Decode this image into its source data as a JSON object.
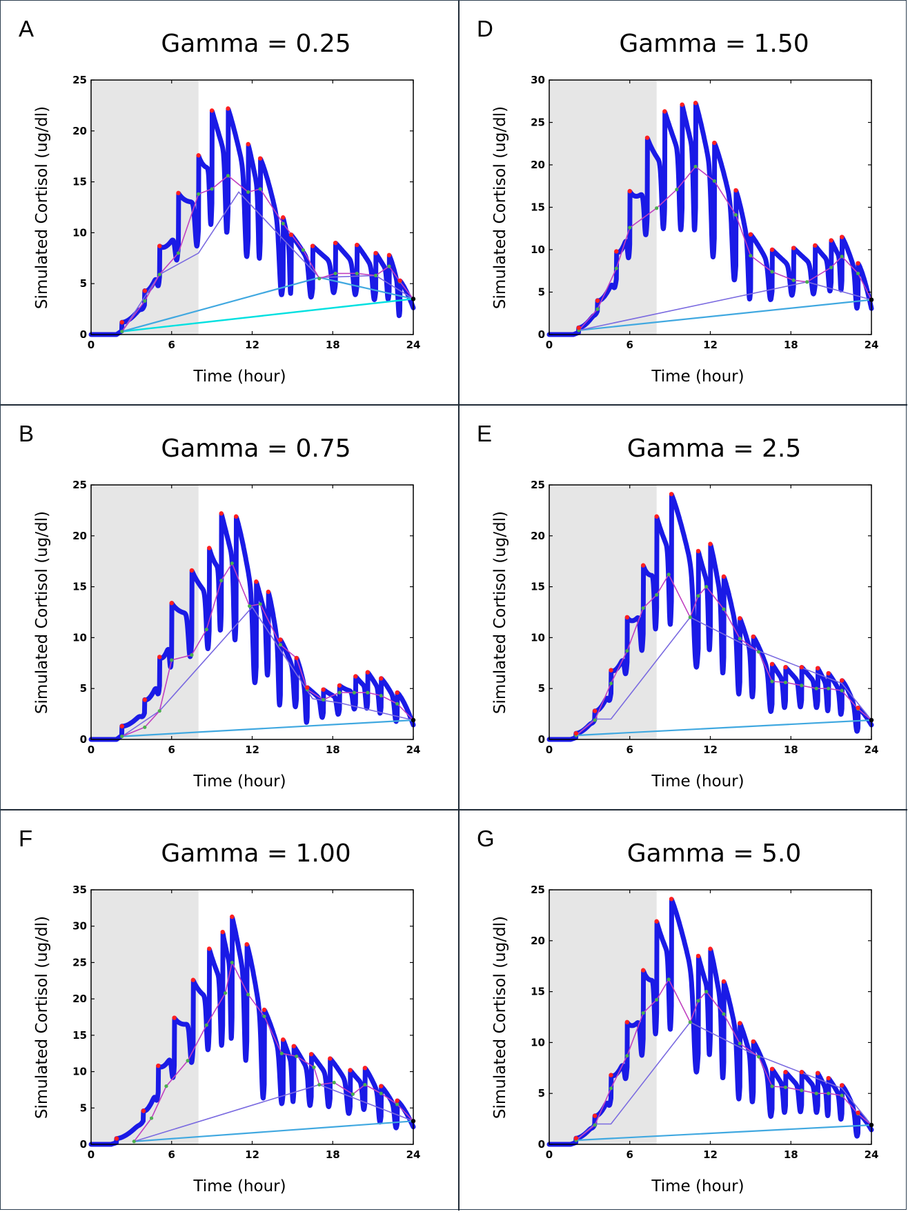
{
  "xlabel": "Time (hour)",
  "ylabel": "Simulated Cortisol (ug/dl)",
  "colors": {
    "trace": "#1a1ae6",
    "peak": "#ff2020",
    "trough": "#4caf50",
    "level1": "#c040c0",
    "level2": "#7a6ae0",
    "level3": "#40a8e0",
    "level4": "#00e0e0",
    "shade": "#e6e6e6"
  },
  "chart_data": [
    {
      "panel": "A",
      "title": "Gamma = 0.25",
      "type": "line",
      "xlim": [
        0,
        24
      ],
      "ylim": [
        0,
        25
      ],
      "xticks": [
        0,
        6,
        12,
        18,
        24
      ],
      "yticks": [
        0,
        5,
        10,
        15,
        20,
        25
      ],
      "shaded_interval": [
        0,
        8
      ],
      "pulses": [
        {
          "t": 2.3,
          "h": 1.2
        },
        {
          "t": 4.0,
          "h": 4.3
        },
        {
          "t": 5.1,
          "h": 8.7
        },
        {
          "t": 6.5,
          "h": 13.9
        },
        {
          "t": 8.0,
          "h": 17.6
        },
        {
          "t": 9.0,
          "h": 22.0
        },
        {
          "t": 10.2,
          "h": 22.2
        },
        {
          "t": 11.7,
          "h": 18.7
        },
        {
          "t": 12.6,
          "h": 17.3
        },
        {
          "t": 14.3,
          "h": 11.5
        },
        {
          "t": 14.9,
          "h": 9.8
        },
        {
          "t": 16.5,
          "h": 8.7
        },
        {
          "t": 18.2,
          "h": 9.0
        },
        {
          "t": 19.8,
          "h": 8.8
        },
        {
          "t": 21.2,
          "h": 8.0
        },
        {
          "t": 22.2,
          "h": 7.8
        },
        {
          "t": 23.0,
          "h": 5.3
        }
      ],
      "end": [
        24,
        3.5
      ],
      "level1": [
        [
          2.3,
          0.3
        ],
        [
          4.0,
          3.3
        ],
        [
          5.1,
          5.9
        ],
        [
          6.5,
          8.0
        ],
        [
          8.0,
          13.8
        ],
        [
          9.0,
          14.3
        ],
        [
          10.2,
          15.6
        ],
        [
          11.7,
          14.0
        ],
        [
          12.6,
          14.3
        ],
        [
          14.3,
          10.9
        ],
        [
          15.8,
          8.3
        ],
        [
          17.0,
          5.5
        ],
        [
          18.2,
          6.0
        ],
        [
          19.8,
          6.0
        ],
        [
          21.2,
          5.8
        ],
        [
          22.2,
          6.7
        ],
        [
          23.0,
          5.2
        ],
        [
          24,
          3.5
        ]
      ],
      "level2": [
        [
          2.3,
          0.3
        ],
        [
          5.1,
          5.9
        ],
        [
          8.0,
          8.0
        ],
        [
          11.0,
          14.0
        ],
        [
          17.0,
          5.6
        ],
        [
          21.2,
          5.8
        ],
        [
          24,
          3.5
        ]
      ],
      "level3": [
        [
          2.3,
          0.3
        ],
        [
          17.0,
          5.6
        ],
        [
          24,
          3.5
        ]
      ],
      "level4": [
        [
          2.3,
          0.3
        ],
        [
          24,
          3.5
        ]
      ]
    },
    {
      "panel": "D",
      "title": "Gamma = 1.50",
      "type": "line",
      "xlim": [
        0,
        24
      ],
      "ylim": [
        0,
        30
      ],
      "xticks": [
        0,
        6,
        12,
        18,
        24
      ],
      "yticks": [
        0,
        5,
        10,
        15,
        20,
        25,
        30
      ],
      "shaded_interval": [
        0,
        8
      ],
      "pulses": [
        {
          "t": 2.2,
          "h": 0.8
        },
        {
          "t": 3.6,
          "h": 4.0
        },
        {
          "t": 5.0,
          "h": 9.8
        },
        {
          "t": 6.0,
          "h": 16.9
        },
        {
          "t": 7.3,
          "h": 23.2
        },
        {
          "t": 8.6,
          "h": 26.3
        },
        {
          "t": 9.9,
          "h": 27.1
        },
        {
          "t": 10.9,
          "h": 27.3
        },
        {
          "t": 12.3,
          "h": 22.6
        },
        {
          "t": 13.9,
          "h": 17.0
        },
        {
          "t": 15.0,
          "h": 11.8
        },
        {
          "t": 16.6,
          "h": 10.0
        },
        {
          "t": 18.2,
          "h": 10.2
        },
        {
          "t": 19.8,
          "h": 10.5
        },
        {
          "t": 21.0,
          "h": 11.1
        },
        {
          "t": 21.8,
          "h": 11.5
        },
        {
          "t": 23.0,
          "h": 8.4
        }
      ],
      "end": [
        24,
        4.1
      ],
      "level1": [
        [
          2.2,
          0.5
        ],
        [
          3.6,
          3.0
        ],
        [
          5.0,
          7.8
        ],
        [
          6.0,
          12.6
        ],
        [
          8.0,
          14.9
        ],
        [
          9.5,
          17.1
        ],
        [
          10.9,
          19.8
        ],
        [
          12.3,
          18.1
        ],
        [
          13.9,
          14.1
        ],
        [
          15.0,
          9.3
        ],
        [
          16.6,
          7.4
        ],
        [
          18.2,
          6.4
        ],
        [
          19.2,
          6.2
        ],
        [
          21.0,
          7.9
        ],
        [
          21.8,
          9.2
        ],
        [
          23.0,
          7.2
        ],
        [
          24,
          4.1
        ]
      ],
      "level2": [
        [
          2.2,
          0.5
        ],
        [
          19.2,
          6.2
        ],
        [
          24,
          4.1
        ]
      ],
      "level3": [
        [
          2.2,
          0.5
        ],
        [
          24,
          4.1
        ]
      ]
    },
    {
      "panel": "B",
      "title": "Gamma = 0.75",
      "type": "line",
      "xlim": [
        0,
        24
      ],
      "ylim": [
        0,
        25
      ],
      "xticks": [
        0,
        6,
        12,
        18,
        24
      ],
      "yticks": [
        0,
        5,
        10,
        15,
        20,
        25
      ],
      "shaded_interval": [
        0,
        8
      ],
      "pulses": [
        {
          "t": 2.3,
          "h": 1.3
        },
        {
          "t": 4.0,
          "h": 3.9
        },
        {
          "t": 5.1,
          "h": 8.1
        },
        {
          "t": 6.0,
          "h": 13.4
        },
        {
          "t": 7.5,
          "h": 16.6
        },
        {
          "t": 8.8,
          "h": 18.8
        },
        {
          "t": 9.7,
          "h": 22.2
        },
        {
          "t": 10.8,
          "h": 21.9
        },
        {
          "t": 12.3,
          "h": 15.5
        },
        {
          "t": 13.2,
          "h": 14.5
        },
        {
          "t": 14.1,
          "h": 9.8
        },
        {
          "t": 15.3,
          "h": 8.0
        },
        {
          "t": 16.1,
          "h": 5.1
        },
        {
          "t": 17.3,
          "h": 4.9
        },
        {
          "t": 18.5,
          "h": 5.3
        },
        {
          "t": 19.7,
          "h": 6.2
        },
        {
          "t": 20.6,
          "h": 6.6
        },
        {
          "t": 21.6,
          "h": 6.0
        },
        {
          "t": 22.8,
          "h": 4.6
        }
      ],
      "end": [
        24,
        1.9
      ],
      "level1": [
        [
          2.3,
          0.3
        ],
        [
          4.0,
          1.2
        ],
        [
          5.1,
          2.8
        ],
        [
          6.0,
          7.8
        ],
        [
          7.5,
          8.3
        ],
        [
          8.6,
          10.8
        ],
        [
          9.7,
          15.6
        ],
        [
          10.5,
          17.3
        ],
        [
          11.8,
          13.1
        ],
        [
          12.6,
          13.3
        ],
        [
          14.1,
          9.3
        ],
        [
          15.3,
          8.0
        ],
        [
          16.1,
          4.9
        ],
        [
          17.3,
          3.9
        ],
        [
          18.5,
          4.6
        ],
        [
          19.6,
          4.6
        ],
        [
          20.6,
          4.6
        ],
        [
          21.6,
          4.3
        ],
        [
          22.8,
          3.5
        ],
        [
          24,
          1.9
        ]
      ],
      "level2": [
        [
          2.3,
          0.3
        ],
        [
          5.1,
          2.8
        ],
        [
          12.0,
          13.0
        ],
        [
          16.5,
          4.0
        ],
        [
          18.5,
          3.6
        ],
        [
          24,
          1.9
        ]
      ],
      "level3": [
        [
          2.3,
          0.3
        ],
        [
          24,
          1.9
        ]
      ]
    },
    {
      "panel": "E",
      "title": "Gamma = 2.5",
      "type": "line",
      "xlim": [
        0,
        24
      ],
      "ylim": [
        0,
        25
      ],
      "xticks": [
        0,
        6,
        12,
        18,
        24
      ],
      "yticks": [
        0,
        5,
        10,
        15,
        20,
        25
      ],
      "shaded_interval": [
        0,
        8
      ],
      "pulses": [
        {
          "t": 2.0,
          "h": 0.6
        },
        {
          "t": 3.4,
          "h": 2.8
        },
        {
          "t": 4.6,
          "h": 6.8
        },
        {
          "t": 5.8,
          "h": 12.0
        },
        {
          "t": 7.0,
          "h": 17.1
        },
        {
          "t": 8.0,
          "h": 21.9
        },
        {
          "t": 9.1,
          "h": 24.1
        },
        {
          "t": 11.1,
          "h": 18.5
        },
        {
          "t": 12.0,
          "h": 19.2
        },
        {
          "t": 13.0,
          "h": 16.0
        },
        {
          "t": 14.2,
          "h": 11.9
        },
        {
          "t": 15.2,
          "h": 10.1
        },
        {
          "t": 16.6,
          "h": 7.4
        },
        {
          "t": 17.6,
          "h": 7.1
        },
        {
          "t": 18.8,
          "h": 7.1
        },
        {
          "t": 20.0,
          "h": 7.0
        },
        {
          "t": 20.8,
          "h": 6.5
        },
        {
          "t": 21.8,
          "h": 5.8
        },
        {
          "t": 23.0,
          "h": 3.1
        }
      ],
      "end": [
        24,
        1.9
      ],
      "level1": [
        [
          2.0,
          0.4
        ],
        [
          3.4,
          1.9
        ],
        [
          4.6,
          5.5
        ],
        [
          5.8,
          8.7
        ],
        [
          7.0,
          12.9
        ],
        [
          8.0,
          14.2
        ],
        [
          8.9,
          16.2
        ],
        [
          10.5,
          12.0
        ],
        [
          11.1,
          14.1
        ],
        [
          11.7,
          15.0
        ],
        [
          13.0,
          12.8
        ],
        [
          14.2,
          9.9
        ],
        [
          15.6,
          8.6
        ],
        [
          16.6,
          5.7
        ],
        [
          17.6,
          5.6
        ],
        [
          18.8,
          5.3
        ],
        [
          19.9,
          5.0
        ],
        [
          20.8,
          5.0
        ],
        [
          21.8,
          4.8
        ],
        [
          23.0,
          3.0
        ],
        [
          24,
          1.9
        ]
      ],
      "level2": [
        [
          2.0,
          0.4
        ],
        [
          3.4,
          2.0
        ],
        [
          4.6,
          2.0
        ],
        [
          10.5,
          12.0
        ],
        [
          15.0,
          9.0
        ],
        [
          21.8,
          5.5
        ],
        [
          24,
          1.9
        ]
      ],
      "level3": [
        [
          2.0,
          0.4
        ],
        [
          24,
          1.9
        ]
      ]
    },
    {
      "panel": "F",
      "title": "Gamma = 1.00",
      "type": "line",
      "xlim": [
        0,
        24
      ],
      "ylim": [
        0,
        35
      ],
      "xticks": [
        0,
        6,
        12,
        18,
        24
      ],
      "yticks": [
        0,
        5,
        10,
        15,
        20,
        25,
        30,
        35
      ],
      "shaded_interval": [
        0,
        8
      ],
      "pulses": [
        {
          "t": 1.9,
          "h": 0.8
        },
        {
          "t": 3.9,
          "h": 4.6
        },
        {
          "t": 5.0,
          "h": 10.8
        },
        {
          "t": 6.2,
          "h": 17.4
        },
        {
          "t": 7.6,
          "h": 22.6
        },
        {
          "t": 8.8,
          "h": 26.9
        },
        {
          "t": 9.8,
          "h": 29.2
        },
        {
          "t": 10.5,
          "h": 31.3
        },
        {
          "t": 11.6,
          "h": 27.5
        },
        {
          "t": 12.9,
          "h": 18.5
        },
        {
          "t": 14.3,
          "h": 14.4
        },
        {
          "t": 15.1,
          "h": 13.5
        },
        {
          "t": 16.4,
          "h": 12.4
        },
        {
          "t": 17.8,
          "h": 11.8
        },
        {
          "t": 19.3,
          "h": 10.2
        },
        {
          "t": 20.4,
          "h": 10.5
        },
        {
          "t": 21.6,
          "h": 8.0
        },
        {
          "t": 22.8,
          "h": 6.0
        }
      ],
      "end": [
        24,
        3.2
      ],
      "level1": [
        [
          3.2,
          0.4
        ],
        [
          4.5,
          3.6
        ],
        [
          5.6,
          8.0
        ],
        [
          7.2,
          11.5
        ],
        [
          8.6,
          16.4
        ],
        [
          10.0,
          20.8
        ],
        [
          10.5,
          25.0
        ],
        [
          11.7,
          20.6
        ],
        [
          12.9,
          17.6
        ],
        [
          14.2,
          12.5
        ],
        [
          15.3,
          12.1
        ],
        [
          16.6,
          10.6
        ],
        [
          17.0,
          8.2
        ],
        [
          18.1,
          8.5
        ],
        [
          19.5,
          6.9
        ],
        [
          20.4,
          8.2
        ],
        [
          21.6,
          7.0
        ],
        [
          22.8,
          5.5
        ],
        [
          24,
          3.2
        ]
      ],
      "level2": [
        [
          3.2,
          0.4
        ],
        [
          17.0,
          8.2
        ],
        [
          24,
          3.2
        ]
      ],
      "level3": [
        [
          3.2,
          0.4
        ],
        [
          24,
          3.2
        ]
      ]
    },
    {
      "panel": "G",
      "title": "Gamma = 5.0",
      "type": "line",
      "xlim": [
        0,
        24
      ],
      "ylim": [
        0,
        25
      ],
      "xticks": [
        0,
        6,
        12,
        18,
        24
      ],
      "yticks": [
        0,
        5,
        10,
        15,
        20,
        25
      ],
      "shaded_interval": [
        0,
        8
      ],
      "pulses": [
        {
          "t": 2.0,
          "h": 0.6
        },
        {
          "t": 3.4,
          "h": 2.8
        },
        {
          "t": 4.6,
          "h": 6.8
        },
        {
          "t": 5.8,
          "h": 12.0
        },
        {
          "t": 7.0,
          "h": 17.1
        },
        {
          "t": 8.0,
          "h": 21.9
        },
        {
          "t": 9.1,
          "h": 24.1
        },
        {
          "t": 11.1,
          "h": 18.5
        },
        {
          "t": 12.0,
          "h": 19.2
        },
        {
          "t": 13.0,
          "h": 16.0
        },
        {
          "t": 14.2,
          "h": 11.9
        },
        {
          "t": 15.2,
          "h": 10.1
        },
        {
          "t": 16.6,
          "h": 7.4
        },
        {
          "t": 17.6,
          "h": 7.1
        },
        {
          "t": 18.8,
          "h": 7.1
        },
        {
          "t": 20.0,
          "h": 7.0
        },
        {
          "t": 20.8,
          "h": 6.5
        },
        {
          "t": 21.8,
          "h": 5.8
        },
        {
          "t": 23.0,
          "h": 3.1
        }
      ],
      "end": [
        24,
        1.9
      ],
      "level1": [
        [
          2.0,
          0.4
        ],
        [
          3.4,
          1.9
        ],
        [
          4.6,
          5.5
        ],
        [
          5.8,
          8.7
        ],
        [
          7.0,
          12.9
        ],
        [
          8.0,
          14.2
        ],
        [
          8.9,
          16.2
        ],
        [
          10.5,
          12.0
        ],
        [
          11.1,
          14.1
        ],
        [
          11.7,
          15.0
        ],
        [
          13.0,
          12.8
        ],
        [
          14.2,
          9.9
        ],
        [
          15.6,
          8.6
        ],
        [
          16.6,
          5.7
        ],
        [
          17.6,
          5.6
        ],
        [
          18.8,
          5.3
        ],
        [
          19.9,
          5.0
        ],
        [
          20.8,
          5.0
        ],
        [
          21.8,
          4.8
        ],
        [
          23.0,
          3.0
        ],
        [
          24,
          1.9
        ]
      ],
      "level2": [
        [
          2.0,
          0.4
        ],
        [
          3.4,
          2.0
        ],
        [
          4.6,
          2.0
        ],
        [
          10.5,
          12.0
        ],
        [
          15.0,
          9.0
        ],
        [
          21.8,
          5.5
        ],
        [
          24,
          1.9
        ]
      ],
      "level3": [
        [
          2.0,
          0.4
        ],
        [
          24,
          1.9
        ]
      ]
    }
  ]
}
